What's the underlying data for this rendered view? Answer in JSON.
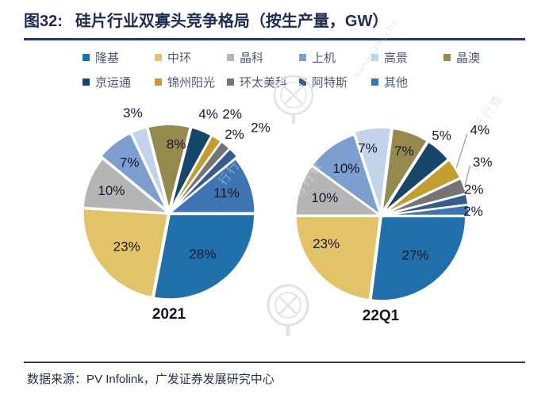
{
  "header": {
    "title_prefix": "图32:",
    "title_text": "硅片行业双寡头竞争格局（按生产量，GW）"
  },
  "legend": {
    "rows": [
      [
        {
          "name": "隆基",
          "color": "#2170ac"
        },
        {
          "name": "中环",
          "color": "#e2c368"
        },
        {
          "name": "晶科",
          "color": "#b5b5b5"
        },
        {
          "name": "上机",
          "color": "#7d9ecf"
        },
        {
          "name": "高景",
          "color": "#c3d3ea"
        },
        {
          "name": "晶澳",
          "color": "#95894e"
        }
      ],
      [
        {
          "name": "京运通",
          "color": "#17466b"
        },
        {
          "name": "锦州阳光",
          "color": "#c49d2f"
        },
        {
          "name": "环太美科",
          "color": "#757575"
        },
        {
          "name": "阿特斯",
          "color": "#355c8c"
        },
        {
          "name": "其他",
          "color": "#3e74b4"
        }
      ]
    ]
  },
  "chart_data": [
    {
      "type": "pie",
      "title": "2021",
      "unit": "percent of production (GW)",
      "start_angle_deg": 90,
      "direction": "clockwise",
      "slices": [
        {
          "name": "隆基",
          "value": 28,
          "label": "28%",
          "color": "#2170ac",
          "label_r": 0.62
        },
        {
          "name": "中环",
          "value": 23,
          "label": "23%",
          "color": "#e2c368",
          "label_r": 0.63
        },
        {
          "name": "晶科",
          "value": 10,
          "label": "10%",
          "color": "#b5b5b5",
          "label_r": 0.73
        },
        {
          "name": "上机",
          "value": 7,
          "label": "7%",
          "color": "#7d9ecf",
          "label_r": 0.76
        },
        {
          "name": "高景",
          "value": 3,
          "label": "3%",
          "color": "#c3d3ea",
          "label_r": 1.26
        },
        {
          "name": "晶澳",
          "value": 8,
          "label": "8%",
          "color": "#95894e",
          "label_r": 0.82,
          "label_angle": 6
        },
        {
          "name": "京运通",
          "value": 4,
          "label": "4%",
          "color": "#17466b",
          "label_r": 1.26
        },
        {
          "name": "锦州阳光",
          "value": 2,
          "label": "2%",
          "color": "#c49d2f",
          "label_r": 1.39
        },
        {
          "name": "环太美科",
          "value": 2,
          "label": "2%",
          "color": "#757575",
          "label_r": 1.21
        },
        {
          "name": "阿特斯",
          "value": 2,
          "label": "2%",
          "color": "#355c8c",
          "label_r": 1.48
        },
        {
          "name": "其他",
          "value": 11,
          "label": "11%",
          "color": "#3e74b4",
          "label_r": 0.72
        }
      ]
    },
    {
      "type": "pie",
      "title": "22Q1",
      "unit": "percent of production (GW)",
      "start_angle_deg": 90,
      "direction": "clockwise",
      "slices": [
        {
          "name": "隆基",
          "value": 27,
          "label": "27%",
          "color": "#2170ac",
          "label_r": 0.62
        },
        {
          "name": "中环",
          "value": 23,
          "label": "23%",
          "color": "#e2c368",
          "label_r": 0.73,
          "label_angle": 243
        },
        {
          "name": "晶科",
          "value": 10,
          "label": "10%",
          "color": "#b5b5b5",
          "label_r": 0.7
        },
        {
          "name": "上机",
          "value": 10,
          "label": "10%",
          "color": "#7d9ecf",
          "label_r": 0.7
        },
        {
          "name": "高景",
          "value": 7,
          "label": "7%",
          "color": "#c3d3ea",
          "label_r": 0.82,
          "label_angle": 349
        },
        {
          "name": "晶澳",
          "value": 7,
          "label": "7%",
          "color": "#95894e",
          "label_r": 0.82
        },
        {
          "name": "京运通",
          "value": 5,
          "label": "5%",
          "color": "#17466b",
          "label_r": 1.2,
          "label_angle": 37
        },
        {
          "name": "锦州阳光",
          "value": 4,
          "label": "4%",
          "color": "#c49d2f",
          "label_r": 1.56,
          "label_angle": 49,
          "leader": true
        },
        {
          "name": "环太美科",
          "value": 3,
          "label": "3%",
          "color": "#757575",
          "label_r": 1.37,
          "label_angle": 62,
          "leader": true
        },
        {
          "name": "阿特斯",
          "value": 2,
          "label": "2%",
          "color": "#355c8c",
          "label_r": 1.15,
          "label_angle": 74
        },
        {
          "name": "其他",
          "value": 2,
          "label": "2%",
          "color": "#3e74b4",
          "label_r": 1.1,
          "label_angle": 87
        }
      ]
    }
  ],
  "footer": {
    "source_label": "数据来源：",
    "source_text": "PV Infolink，广发证券发展研究中心"
  },
  "watermark": {
    "text": "行行查",
    "latin": "hanghangcha"
  }
}
